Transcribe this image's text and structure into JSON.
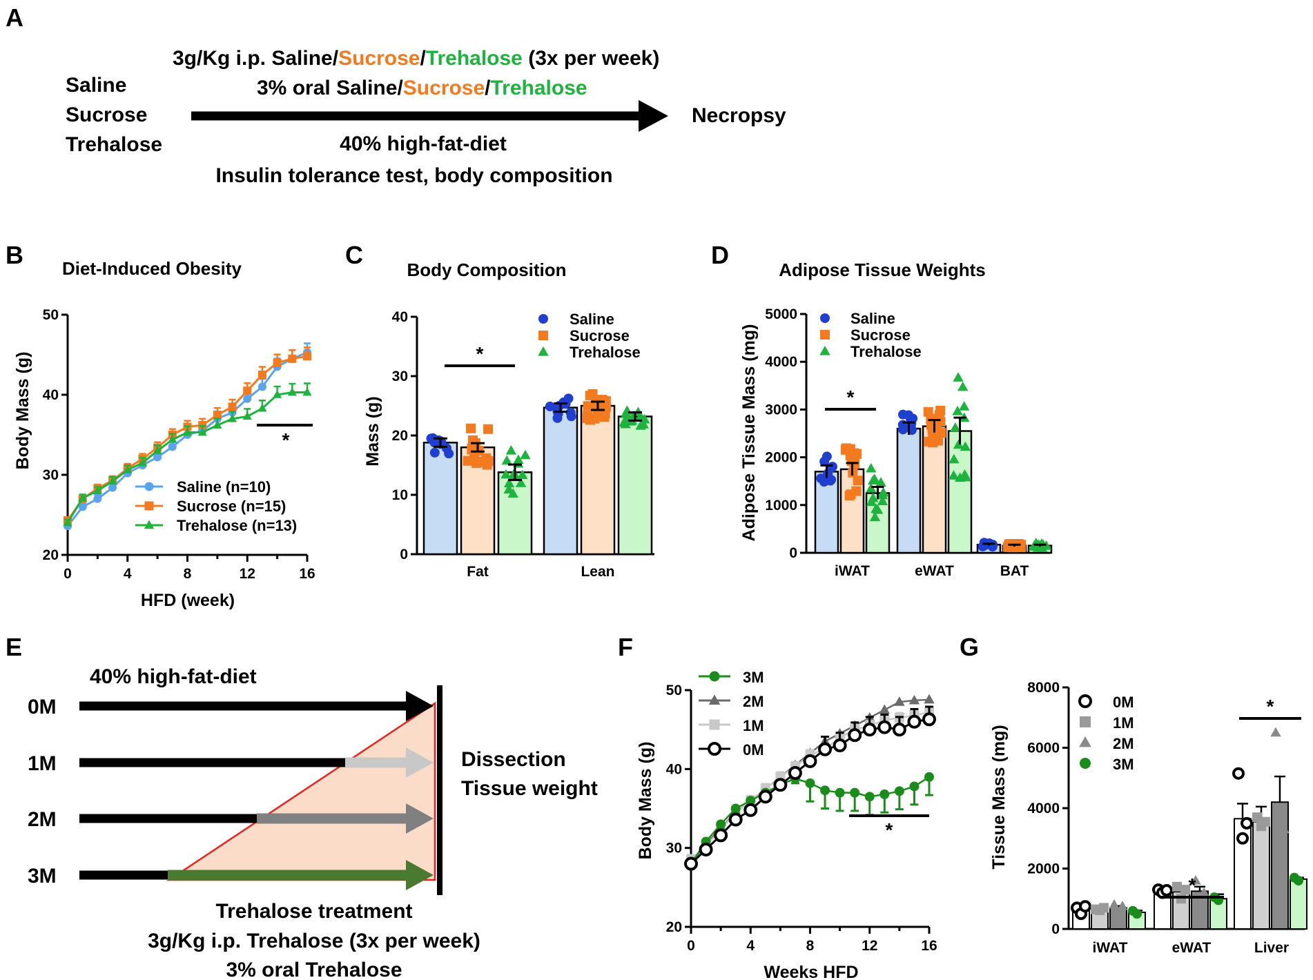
{
  "colors": {
    "saline": "#1f3fd1",
    "saline_light": "#c6dcf4",
    "saline_line": "#5aa3ee",
    "sucrose": "#f47a20",
    "sucrose_light": "#fde0c6",
    "trehalose": "#1db33d",
    "trehalose_light": "#c9f7c9",
    "m3": "#1a8c1a",
    "m3_fill": "#4a7a2f",
    "m2": "#6a6a6a",
    "m1": "#c8c8c8",
    "m0": "#000000",
    "red": "#e8231e",
    "triangle_fill": "#fbdcc8"
  },
  "panels": {
    "A": {
      "label": "A",
      "groups": [
        "Saline",
        "Sucrose",
        "Trehalose"
      ],
      "ip_prefix": "3g/Kg i.p. ",
      "ip_suffix": " (3x per week)",
      "oral_prefix": "3% oral ",
      "treat_saline": "Saline",
      "treat_sucrose": "Sucrose",
      "treat_trehalose": "Trehalose",
      "slash": "/",
      "diet": "40% high-fat-diet",
      "tests": "Insulin tolerance test, body composition",
      "endpoint": "Necropsy"
    },
    "E": {
      "label": "E",
      "diet": "40% high-fat-diet",
      "rows": [
        "0M",
        "1M",
        "2M",
        "3M"
      ],
      "dissection": "Dissection",
      "tissue_weight": "Tissue weight",
      "treatment_title": "Trehalose treatment",
      "treatment_ip": "3g/Kg i.p. Trehalose (3x per week)",
      "treatment_oral": "3% oral Trehalose"
    }
  },
  "chart_data": [
    {
      "panel": "B",
      "type": "line",
      "title": "Diet-Induced Obesity",
      "xlabel": "HFD (week)",
      "ylabel": "Body Mass (g)",
      "xlim": [
        0,
        16
      ],
      "ylim": [
        20,
        50
      ],
      "xticks": [
        "0",
        "4",
        "8",
        "12",
        "16"
      ],
      "yticks": [
        "20",
        "30",
        "40",
        "50"
      ],
      "x": [
        0,
        1,
        2,
        3,
        4,
        5,
        6,
        7,
        8,
        9,
        10,
        11,
        12,
        13,
        14,
        15,
        16
      ],
      "series": [
        {
          "name": "Saline (n=10)",
          "values": [
            23.6,
            26.0,
            27.0,
            28.4,
            30.2,
            31.2,
            32.2,
            33.5,
            35.0,
            35.5,
            37.0,
            37.8,
            39.5,
            41.0,
            43.5,
            44.5,
            45.3
          ]
        },
        {
          "name": "Sucrose (n=15)",
          "values": [
            24.3,
            27.0,
            28.3,
            29.3,
            30.8,
            32.0,
            33.4,
            35.0,
            36.0,
            36.2,
            37.5,
            38.5,
            40.5,
            42.5,
            44.0,
            44.5,
            44.8
          ]
        },
        {
          "name": "Trehalose (n=13)",
          "values": [
            24.0,
            27.1,
            28.0,
            29.2,
            30.6,
            31.5,
            33.0,
            34.4,
            35.3,
            35.3,
            36.2,
            37.0,
            37.3,
            38.3,
            40.0,
            40.3,
            40.3
          ]
        }
      ],
      "significance": "*"
    },
    {
      "panel": "C",
      "type": "bar",
      "title": "Body Composition",
      "ylabel": "Mass (g)",
      "ylim": [
        0,
        40
      ],
      "yticks": [
        "0",
        "10",
        "20",
        "30",
        "40"
      ],
      "categories": [
        "Fat",
        "Lean"
      ],
      "series": [
        {
          "name": "Saline",
          "values": [
            18.8,
            24.7
          ]
        },
        {
          "name": "Sucrose",
          "values": [
            18.0,
            25.0
          ]
        },
        {
          "name": "Trehalose",
          "values": [
            13.8,
            23.2
          ]
        }
      ],
      "significance": "*"
    },
    {
      "panel": "D",
      "type": "bar",
      "title": "Adipose Tissue Weights",
      "ylabel": "Adipose Tissue Mass (mg)",
      "ylim": [
        0,
        5000
      ],
      "yticks": [
        "0",
        "1000",
        "2000",
        "3000",
        "4000",
        "5000"
      ],
      "categories": [
        "iWAT",
        "eWAT",
        "BAT"
      ],
      "series": [
        {
          "name": "Saline",
          "values": [
            1700,
            2600,
            170
          ]
        },
        {
          "name": "Sucrose",
          "values": [
            1750,
            2650,
            150
          ]
        },
        {
          "name": "Trehalose",
          "values": [
            1250,
            2550,
            150
          ]
        }
      ],
      "significance": "*"
    },
    {
      "panel": "F",
      "type": "line",
      "xlabel": "Weeks HFD",
      "ylabel": "Body Mass (g)",
      "xlim": [
        0,
        16
      ],
      "ylim": [
        20,
        50
      ],
      "xticks": [
        "0",
        "4",
        "8",
        "12",
        "16"
      ],
      "yticks": [
        "20",
        "30",
        "40",
        "50"
      ],
      "x": [
        0,
        1,
        2,
        3,
        4,
        5,
        6,
        7,
        8,
        9,
        10,
        11,
        12,
        13,
        14,
        15,
        16
      ],
      "series": [
        {
          "name": "3M",
          "values": [
            28.0,
            30.8,
            33.0,
            35.0,
            36.0,
            37.0,
            38.0,
            38.8,
            38.2,
            37.3,
            37.0,
            37.0,
            36.5,
            36.8,
            37.2,
            37.8,
            39.0
          ]
        },
        {
          "name": "2M",
          "values": [
            28.0,
            30.5,
            32.5,
            34.5,
            36.0,
            37.5,
            39.0,
            40.5,
            42.0,
            43.5,
            44.5,
            45.5,
            46.5,
            47.5,
            48.5,
            48.7,
            48.8
          ]
        },
        {
          "name": "1M",
          "values": [
            28.5,
            30.3,
            32.3,
            34.5,
            36.0,
            37.5,
            39.0,
            40.3,
            41.8,
            42.5,
            44.0,
            45.0,
            45.5,
            46.2,
            46.5,
            46.8,
            47.2
          ]
        },
        {
          "name": "0M",
          "values": [
            28.0,
            29.8,
            31.6,
            33.6,
            34.8,
            36.5,
            38.0,
            39.5,
            41.0,
            42.5,
            43.0,
            44.3,
            45.0,
            45.3,
            45.0,
            46.0,
            46.3
          ]
        }
      ],
      "significance": "*"
    },
    {
      "panel": "G",
      "type": "bar",
      "ylabel": "Tissue Mass (mg)",
      "ylim": [
        0,
        8000
      ],
      "yticks": [
        "0",
        "2000",
        "4000",
        "6000",
        "8000"
      ],
      "categories": [
        "iWAT",
        "eWAT",
        "Liver"
      ],
      "series": [
        {
          "name": "0M",
          "values": [
            620,
            1250,
            3650
          ]
        },
        {
          "name": "1M",
          "values": [
            650,
            1230,
            3550
          ]
        },
        {
          "name": "2M",
          "values": [
            700,
            1250,
            4200
          ]
        },
        {
          "name": "3M",
          "values": [
            550,
            1000,
            1650
          ]
        }
      ],
      "significance": "*"
    }
  ]
}
